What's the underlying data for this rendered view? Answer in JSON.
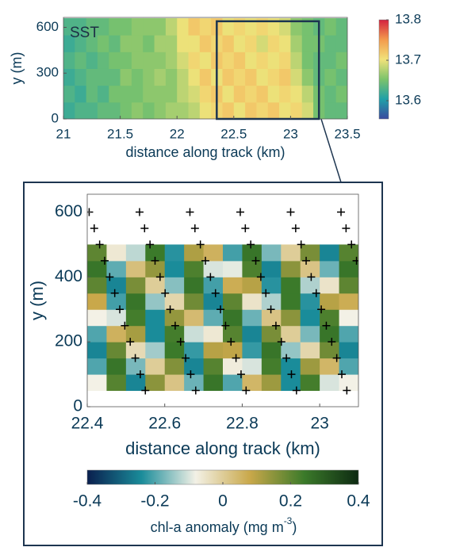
{
  "chart_data": [
    {
      "type": "heatmap",
      "annotation": "SST",
      "xlabel": "distance along track (km)",
      "ylabel": "y (m)",
      "xlim": [
        21,
        23.5
      ],
      "xticks": [
        21,
        21.5,
        22,
        22.5,
        23,
        23.5
      ],
      "ylim": [
        0,
        665
      ],
      "yticks": [
        0,
        300,
        600
      ],
      "x": [
        21.05,
        21.15,
        21.25,
        21.35,
        21.45,
        21.55,
        21.65,
        21.75,
        21.85,
        21.95,
        22.05,
        22.15,
        22.25,
        22.35,
        22.45,
        22.55,
        22.65,
        22.75,
        22.85,
        22.95,
        23.05,
        23.15,
        23.25,
        23.35,
        23.45
      ],
      "y": [
        55,
        165,
        275,
        385,
        495,
        605
      ],
      "z": [
        [
          13.62,
          13.63,
          13.63,
          13.64,
          13.64,
          13.65,
          13.66,
          13.65,
          13.66,
          13.67,
          13.67,
          13.68,
          13.7,
          13.71,
          13.72,
          13.7,
          13.72,
          13.71,
          13.72,
          13.7,
          13.71,
          13.69,
          13.65,
          13.64,
          13.64
        ],
        [
          13.63,
          13.62,
          13.64,
          13.63,
          13.65,
          13.65,
          13.65,
          13.66,
          13.66,
          13.66,
          13.68,
          13.69,
          13.71,
          13.72,
          13.7,
          13.72,
          13.71,
          13.72,
          13.7,
          13.71,
          13.7,
          13.68,
          13.65,
          13.64,
          13.65
        ],
        [
          13.62,
          13.63,
          13.64,
          13.64,
          13.64,
          13.66,
          13.65,
          13.66,
          13.67,
          13.66,
          13.68,
          13.7,
          13.72,
          13.7,
          13.72,
          13.71,
          13.72,
          13.7,
          13.71,
          13.72,
          13.69,
          13.66,
          13.64,
          13.65,
          13.64
        ],
        [
          13.63,
          13.64,
          13.63,
          13.64,
          13.65,
          13.65,
          13.66,
          13.66,
          13.66,
          13.67,
          13.69,
          13.71,
          13.7,
          13.72,
          13.71,
          13.72,
          13.7,
          13.71,
          13.7,
          13.71,
          13.68,
          13.65,
          13.64,
          13.64,
          13.65
        ],
        [
          13.62,
          13.63,
          13.64,
          13.65,
          13.64,
          13.66,
          13.66,
          13.65,
          13.67,
          13.67,
          13.7,
          13.7,
          13.72,
          13.71,
          13.72,
          13.7,
          13.71,
          13.69,
          13.71,
          13.7,
          13.67,
          13.65,
          13.65,
          13.64,
          13.64
        ],
        [
          13.63,
          13.63,
          13.64,
          13.64,
          13.65,
          13.65,
          13.66,
          13.66,
          13.66,
          13.68,
          13.7,
          13.72,
          13.71,
          13.72,
          13.7,
          13.71,
          13.7,
          13.71,
          13.7,
          13.69,
          13.66,
          13.65,
          13.64,
          13.65,
          13.64
        ]
      ],
      "zoom_box": {
        "x": [
          22.35,
          23.25
        ],
        "y": [
          0,
          640
        ]
      },
      "colormap": [
        "#3a4a9f",
        "#1fa0a8",
        "#7cc36b",
        "#f1e27a",
        "#f39a4c",
        "#d4223f"
      ],
      "clim": [
        13.555,
        13.8
      ],
      "colorbar_ticks": [
        13.6,
        13.7,
        13.8
      ]
    },
    {
      "type": "heatmap",
      "xlabel": "distance along track (km)",
      "ylabel": "y (m)",
      "xlim": [
        22.4,
        23.1
      ],
      "xticks": [
        22.4,
        22.6,
        22.8,
        23
      ],
      "ylim": [
        0,
        655
      ],
      "yticks": [
        0,
        200,
        400,
        600
      ],
      "x": [
        22.425,
        22.475,
        22.525,
        22.575,
        22.625,
        22.675,
        22.725,
        22.775,
        22.825,
        22.875,
        22.925,
        22.975,
        23.025,
        23.075
      ],
      "y": [
        75,
        125,
        175,
        225,
        275,
        325,
        375,
        425,
        475
      ],
      "z": [
        [
          -0.08,
          0.21,
          -0.25,
          0.15,
          0.02,
          -0.18,
          0.25,
          -0.2,
          0.05,
          0.13,
          -0.24,
          0.23,
          -0.1,
          -0.08
        ],
        [
          -0.2,
          0.25,
          -0.17,
          0,
          0.16,
          -0.25,
          0.21,
          -0.07,
          -0.1,
          0.23,
          -0.24,
          0.13,
          0.05,
          -0.2
        ],
        [
          -0.25,
          0.19,
          -0.03,
          -0.14,
          0.24,
          -0.22,
          0.1,
          0.09,
          -0.22,
          0.25,
          -0.15,
          -0.02,
          0.18,
          -0.25
        ],
        [
          -0.2,
          0.06,
          0.12,
          -0.24,
          0.23,
          -0.11,
          -0.06,
          0.21,
          -0.25,
          0.17,
          0,
          -0.17,
          0.25,
          -0.2
        ],
        [
          -0.08,
          -0.1,
          0.23,
          -0.24,
          0.14,
          0.04,
          -0.19,
          0.25,
          -0.18,
          0.02,
          0.15,
          -0.24,
          0.22,
          -0.08
        ],
        [
          0.08,
          -0.21,
          0.25,
          -0.15,
          -0.02,
          0.18,
          -0.25,
          0.2,
          -0.05,
          -0.13,
          0.24,
          -0.23,
          0.1,
          0.07
        ],
        [
          0.2,
          -0.25,
          0.17,
          0,
          -0.16,
          0.25,
          -0.21,
          0.07,
          0.1,
          -0.23,
          0.24,
          -0.13,
          -0.05,
          0.2
        ],
        [
          0.25,
          -0.19,
          0.03,
          0.14,
          -0.24,
          0.22,
          -0.1,
          -0.09,
          0.22,
          -0.25,
          0.15,
          0.02,
          -0.18,
          0.25
        ],
        [
          0.2,
          -0.06,
          -0.12,
          0.24,
          -0.23,
          0.11,
          0.06,
          -0.21,
          0.25,
          -0.17,
          0,
          0.17,
          -0.25,
          0.21
        ]
      ],
      "crosses": {
        "color": "#000000",
        "x": [
          22.405,
          22.418,
          22.432,
          22.445,
          22.458,
          22.471,
          22.484,
          22.497,
          22.511,
          22.524,
          22.537,
          22.55,
          22.535,
          22.548,
          22.562,
          22.575,
          22.588,
          22.601,
          22.614,
          22.627,
          22.641,
          22.654,
          22.667,
          22.68,
          22.665,
          22.678,
          22.692,
          22.705,
          22.718,
          22.731,
          22.744,
          22.757,
          22.771,
          22.784,
          22.797,
          22.81,
          22.795,
          22.808,
          22.822,
          22.835,
          22.848,
          22.861,
          22.874,
          22.887,
          22.901,
          22.914,
          22.927,
          22.94,
          22.925,
          22.938,
          22.952,
          22.965,
          22.978,
          22.991,
          23.004,
          23.017,
          23.031,
          23.044,
          23.057,
          23.07,
          23.055,
          23.068,
          23.082,
          23.095
        ],
        "y": [
          600,
          550,
          500,
          450,
          400,
          350,
          300,
          250,
          200,
          150,
          100,
          50,
          600,
          550,
          500,
          450,
          400,
          350,
          300,
          250,
          200,
          150,
          100,
          50,
          600,
          550,
          500,
          450,
          400,
          350,
          300,
          250,
          200,
          150,
          100,
          50,
          600,
          550,
          500,
          450,
          400,
          350,
          300,
          250,
          200,
          150,
          100,
          50,
          600,
          550,
          500,
          450,
          400,
          350,
          300,
          250,
          200,
          150,
          100,
          50,
          600,
          550,
          500,
          450
        ]
      },
      "colormap": [
        "#0a1f4e",
        "#1a8c9a",
        "#f3f1e6",
        "#c9a84a",
        "#3b7a2a",
        "#0d2a12"
      ],
      "clim": [
        -0.4,
        0.4
      ],
      "colorbar_ticks": [
        -0.4,
        -0.2,
        0,
        0.2,
        0.4
      ],
      "colorbar_label": "chl-a anomaly (mg m",
      "colorbar_label_sup": "-3",
      "colorbar_label_end": ")"
    }
  ]
}
